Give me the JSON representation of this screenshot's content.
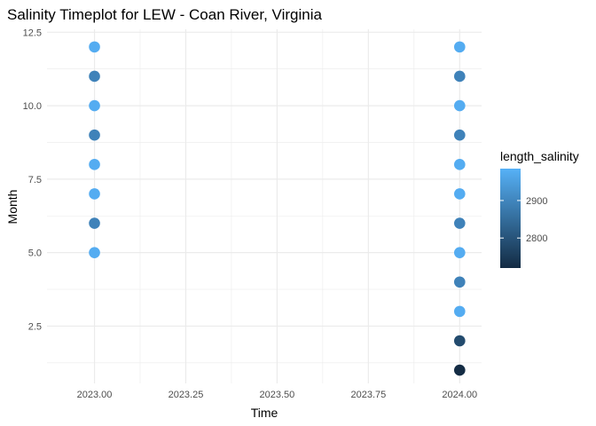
{
  "chart_data": {
    "type": "scatter",
    "title": "Salinity Timeplot for LEW - Coan River, Virginia",
    "xlabel": "Time",
    "ylabel": "Month",
    "xlim": [
      2022.87,
      2024.06
    ],
    "ylim": [
      0.55,
      12.6
    ],
    "x_ticks": [
      2023.0,
      2023.25,
      2023.5,
      2023.75,
      2024.0
    ],
    "x_tick_labels": [
      "2023.00",
      "2023.25",
      "2023.50",
      "2023.75",
      "2024.00"
    ],
    "y_ticks": [
      2.5,
      5.0,
      7.5,
      10.0,
      12.5
    ],
    "y_tick_labels": [
      "2.5",
      "5.0",
      "7.5",
      "10.0",
      "12.5"
    ],
    "grid": true,
    "color_variable": "length_salinity",
    "legend": {
      "title": "length_salinity",
      "placement": "right",
      "type": "colorbar",
      "range": [
        2720,
        2985
      ],
      "ticks": [
        2800,
        2900
      ],
      "tick_labels": [
        "2800",
        "2900"
      ],
      "low_color": "#132B43",
      "high_color": "#56B1F7"
    },
    "points": [
      {
        "x": 2023.0,
        "y": 12,
        "value": 2976
      },
      {
        "x": 2023.0,
        "y": 11,
        "value": 2893
      },
      {
        "x": 2023.0,
        "y": 10,
        "value": 2976
      },
      {
        "x": 2023.0,
        "y": 9,
        "value": 2893
      },
      {
        "x": 2023.0,
        "y": 8,
        "value": 2976
      },
      {
        "x": 2023.0,
        "y": 7,
        "value": 2976
      },
      {
        "x": 2023.0,
        "y": 6,
        "value": 2893
      },
      {
        "x": 2023.0,
        "y": 5,
        "value": 2976
      },
      {
        "x": 2024.0,
        "y": 12,
        "value": 2976
      },
      {
        "x": 2024.0,
        "y": 11,
        "value": 2893
      },
      {
        "x": 2024.0,
        "y": 10,
        "value": 2976
      },
      {
        "x": 2024.0,
        "y": 9,
        "value": 2893
      },
      {
        "x": 2024.0,
        "y": 8,
        "value": 2976
      },
      {
        "x": 2024.0,
        "y": 7,
        "value": 2976
      },
      {
        "x": 2024.0,
        "y": 6,
        "value": 2893
      },
      {
        "x": 2024.0,
        "y": 5,
        "value": 2976
      },
      {
        "x": 2024.0,
        "y": 4,
        "value": 2893
      },
      {
        "x": 2024.0,
        "y": 3,
        "value": 2976
      },
      {
        "x": 2024.0,
        "y": 2,
        "value": 2783
      },
      {
        "x": 2024.0,
        "y": 1,
        "value": 2722
      }
    ]
  }
}
